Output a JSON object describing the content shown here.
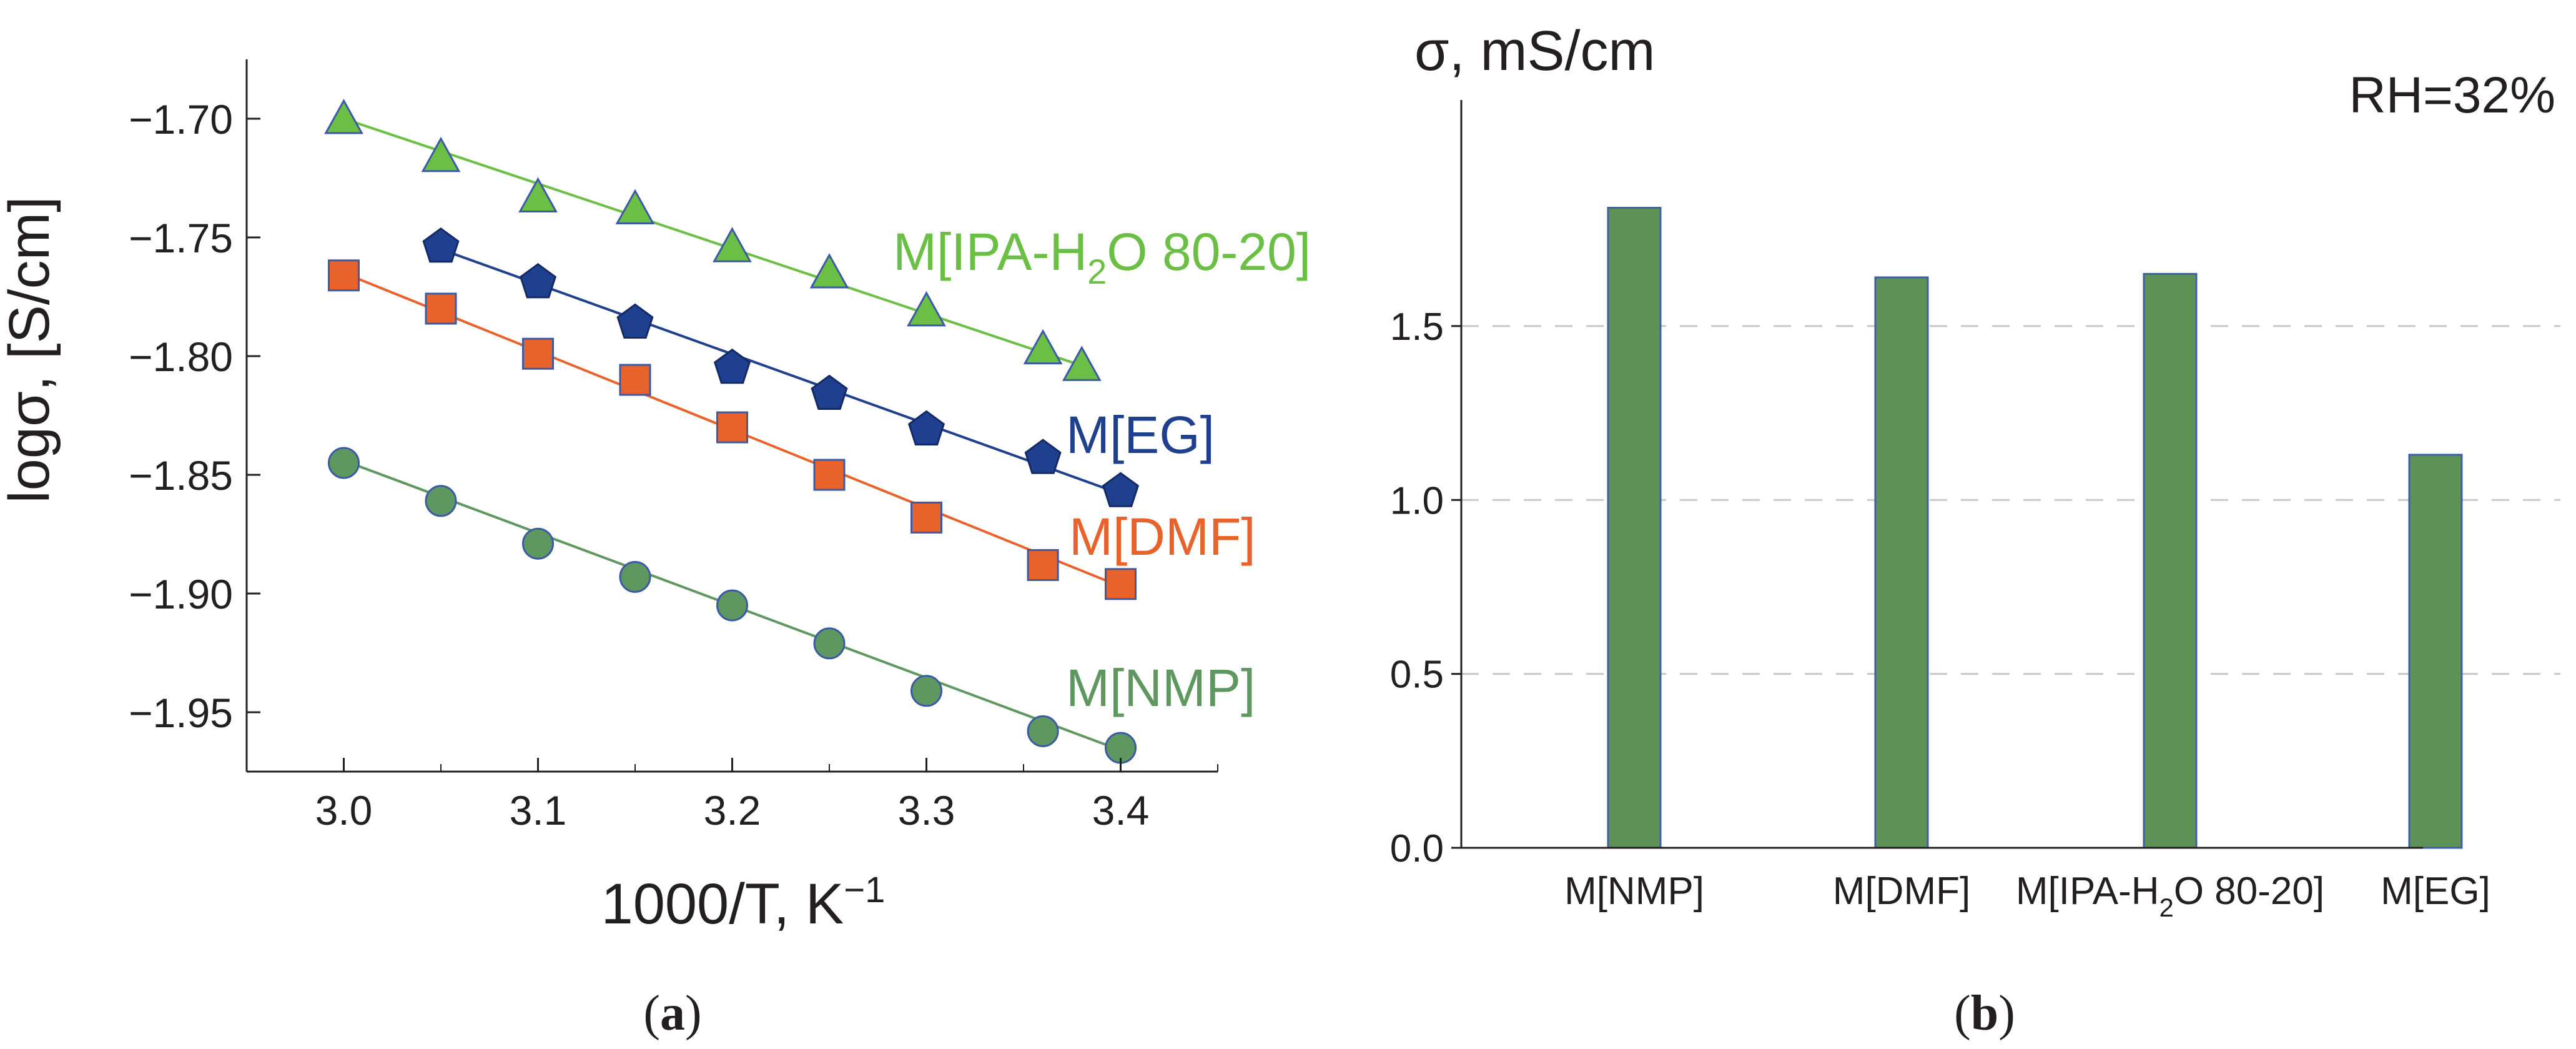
{
  "chart_data": [
    {
      "panel": "a",
      "type": "scatter",
      "caption_letter": "a",
      "xlabel": "1000/T, K",
      "xlabel_sup": "−1",
      "ylabel": "logσ, [S/cm]",
      "xlim": [
        2.95,
        3.45
      ],
      "ylim": [
        -1.975,
        -1.675
      ],
      "x_ticks": [
        3.0,
        3.1,
        3.2,
        3.3,
        3.4
      ],
      "x_tick_labels": [
        "3.0",
        "3.1",
        "3.2",
        "3.3",
        "3.4"
      ],
      "y_ticks": [
        -1.7,
        -1.75,
        -1.8,
        -1.85,
        -1.9,
        -1.95
      ],
      "y_tick_labels": [
        "−1.70",
        "−1.75",
        "−1.80",
        "−1.85",
        "−1.90",
        "−1.95"
      ],
      "series": [
        {
          "name": "M[IPA-H2O 80-20]",
          "label_main": "M[IPA-H",
          "label_sub": "2",
          "label_rest": "O 80-20]",
          "marker": "triangle",
          "color": "#6cbf45",
          "x": [
            3.0,
            3.05,
            3.1,
            3.15,
            3.2,
            3.25,
            3.3,
            3.36,
            3.38
          ],
          "y": [
            -1.7,
            -1.716,
            -1.733,
            -1.738,
            -1.754,
            -1.765,
            -1.781,
            -1.797,
            -1.804
          ],
          "fit": [
            [
              3.0,
              -1.7
            ],
            [
              3.38,
              -1.804
            ]
          ]
        },
        {
          "name": "M[EG]",
          "label_main": "M[EG]",
          "marker": "pentagon",
          "color": "#1f3f8f",
          "x": [
            3.05,
            3.1,
            3.15,
            3.2,
            3.25,
            3.3,
            3.36,
            3.4
          ],
          "y": [
            -1.754,
            -1.769,
            -1.786,
            -1.805,
            -1.816,
            -1.831,
            -1.843,
            -1.857
          ],
          "fit": [
            [
              3.05,
              -1.755
            ],
            [
              3.4,
              -1.858
            ]
          ]
        },
        {
          "name": "M[DMF]",
          "label_main": "M[DMF]",
          "marker": "square",
          "color": "#e8632b",
          "x": [
            3.0,
            3.05,
            3.1,
            3.15,
            3.2,
            3.25,
            3.3,
            3.36,
            3.4
          ],
          "y": [
            -1.766,
            -1.78,
            -1.799,
            -1.81,
            -1.83,
            -1.85,
            -1.868,
            -1.888,
            -1.896
          ],
          "fit": [
            [
              3.0,
              -1.765
            ],
            [
              3.4,
              -1.897
            ]
          ]
        },
        {
          "name": "M[NMP]",
          "label_main": "M[NMP]",
          "marker": "circle",
          "color": "#5e9760",
          "x": [
            3.0,
            3.05,
            3.1,
            3.15,
            3.2,
            3.25,
            3.3,
            3.36,
            3.4
          ],
          "y": [
            -1.845,
            -1.861,
            -1.879,
            -1.893,
            -1.905,
            -1.921,
            -1.941,
            -1.958,
            -1.965
          ],
          "fit": [
            [
              3.0,
              -1.844
            ],
            [
              3.4,
              -1.966
            ]
          ]
        }
      ]
    },
    {
      "panel": "b",
      "type": "bar",
      "caption_letter": "b",
      "title": "σ, mS/cm",
      "annotation": "RH=32%",
      "ylim": [
        0,
        2.15
      ],
      "y_ticks": [
        0.0,
        0.5,
        1.0,
        1.5
      ],
      "y_tick_labels": [
        "0.0",
        "0.5",
        "1.0",
        "1.5"
      ],
      "grid": true,
      "categories": [
        "M[NMP]",
        "M[DMF]",
        "M[IPA-H2O 80-20]",
        "M[EG]"
      ],
      "category_labels": [
        {
          "main": "M[NMP]"
        },
        {
          "main": "M[DMF]"
        },
        {
          "main": "M[IPA-H",
          "sub": "2",
          "rest": "O 80-20]"
        },
        {
          "main": "M[EG]"
        }
      ],
      "values": [
        1.84,
        1.64,
        1.65,
        1.13
      ],
      "bar_color": "#5e9156",
      "bar_edge": "#3f5fa8"
    }
  ],
  "colors": {
    "axis": "#231f20",
    "grid": "#c8c8c8"
  }
}
